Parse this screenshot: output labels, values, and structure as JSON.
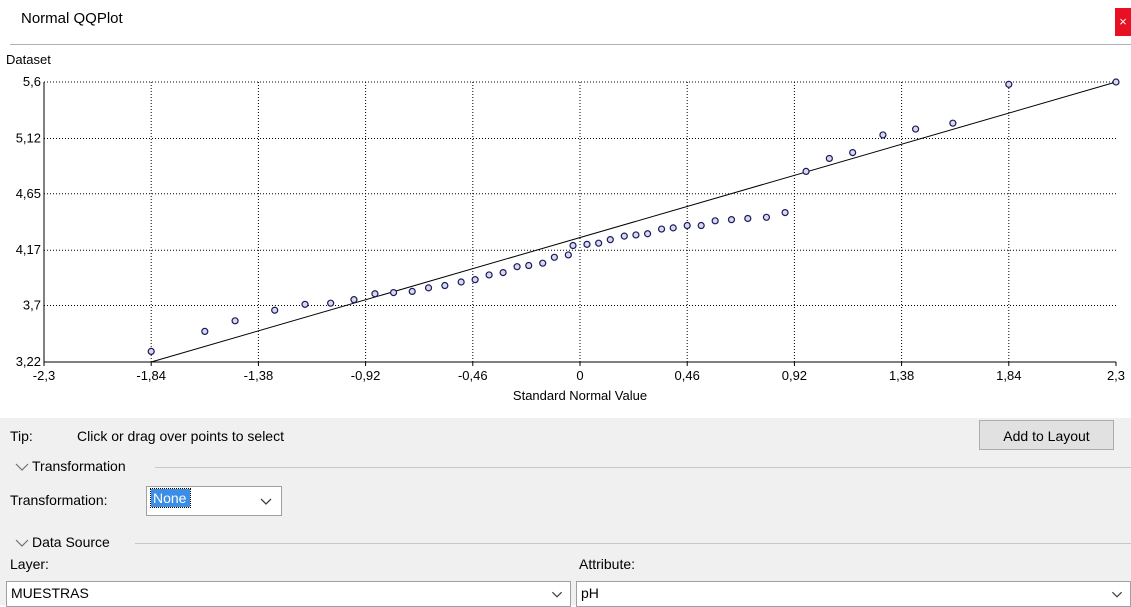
{
  "window": {
    "title": "Normal QQPlot",
    "close_label": "×"
  },
  "chart_data": {
    "type": "scatter",
    "ylabel": "Dataset",
    "xlabel": "Standard Normal Value",
    "xlim": [
      -2.3,
      2.3
    ],
    "ylim": [
      3.22,
      5.6
    ],
    "x_ticks": [
      -2.3,
      -1.84,
      -1.38,
      -0.92,
      -0.46,
      0,
      0.46,
      0.92,
      1.38,
      1.84,
      2.3
    ],
    "x_tick_labels": [
      "-2,3",
      "-1,84",
      "-1,38",
      "-0,92",
      "-0,46",
      "0",
      "0,46",
      "0,92",
      "1,38",
      "1,84",
      "2,3"
    ],
    "y_ticks": [
      3.22,
      3.7,
      4.17,
      4.65,
      5.12,
      5.6
    ],
    "y_tick_labels": [
      "3,22",
      "3,7",
      "4,17",
      "4,65",
      "5,12",
      "5,6"
    ],
    "grid": true,
    "reference_line": {
      "x": [
        -1.84,
        2.3
      ],
      "y": [
        3.22,
        5.6
      ]
    },
    "points": [
      {
        "x": -1.84,
        "y": 3.31
      },
      {
        "x": -1.61,
        "y": 3.48
      },
      {
        "x": -1.48,
        "y": 3.57
      },
      {
        "x": -1.31,
        "y": 3.66
      },
      {
        "x": -1.18,
        "y": 3.71
      },
      {
        "x": -1.07,
        "y": 3.72
      },
      {
        "x": -0.97,
        "y": 3.75
      },
      {
        "x": -0.88,
        "y": 3.8
      },
      {
        "x": -0.8,
        "y": 3.81
      },
      {
        "x": -0.72,
        "y": 3.82
      },
      {
        "x": -0.65,
        "y": 3.85
      },
      {
        "x": -0.58,
        "y": 3.87
      },
      {
        "x": -0.51,
        "y": 3.9
      },
      {
        "x": -0.45,
        "y": 3.92
      },
      {
        "x": -0.39,
        "y": 3.96
      },
      {
        "x": -0.33,
        "y": 3.98
      },
      {
        "x": -0.27,
        "y": 4.03
      },
      {
        "x": -0.22,
        "y": 4.04
      },
      {
        "x": -0.16,
        "y": 4.06
      },
      {
        "x": -0.11,
        "y": 4.11
      },
      {
        "x": -0.05,
        "y": 4.13
      },
      {
        "x": -0.03,
        "y": 4.21
      },
      {
        "x": 0.03,
        "y": 4.22
      },
      {
        "x": 0.08,
        "y": 4.23
      },
      {
        "x": 0.13,
        "y": 4.26
      },
      {
        "x": 0.19,
        "y": 4.29
      },
      {
        "x": 0.24,
        "y": 4.3
      },
      {
        "x": 0.29,
        "y": 4.31
      },
      {
        "x": 0.35,
        "y": 4.35
      },
      {
        "x": 0.4,
        "y": 4.36
      },
      {
        "x": 0.46,
        "y": 4.38
      },
      {
        "x": 0.52,
        "y": 4.38
      },
      {
        "x": 0.58,
        "y": 4.42
      },
      {
        "x": 0.65,
        "y": 4.43
      },
      {
        "x": 0.72,
        "y": 4.44
      },
      {
        "x": 0.8,
        "y": 4.45
      },
      {
        "x": 0.88,
        "y": 4.49
      },
      {
        "x": 0.97,
        "y": 4.84
      },
      {
        "x": 1.07,
        "y": 4.95
      },
      {
        "x": 1.17,
        "y": 5.0
      },
      {
        "x": 1.3,
        "y": 5.15
      },
      {
        "x": 1.44,
        "y": 5.2
      },
      {
        "x": 1.6,
        "y": 5.25
      },
      {
        "x": 1.84,
        "y": 5.58
      },
      {
        "x": 2.3,
        "y": 5.6
      }
    ]
  },
  "panel": {
    "tip_label": "Tip:",
    "tip_text": "Click or drag over points to select",
    "add_button": "Add to Layout",
    "transformation_section": "Transformation",
    "transformation_label": "Transformation:",
    "transformation_value": "None",
    "data_source_section": "Data Source",
    "layer_label": "Layer:",
    "layer_value": "MUESTRAS",
    "attribute_label": "Attribute:",
    "attribute_value": "pH"
  }
}
